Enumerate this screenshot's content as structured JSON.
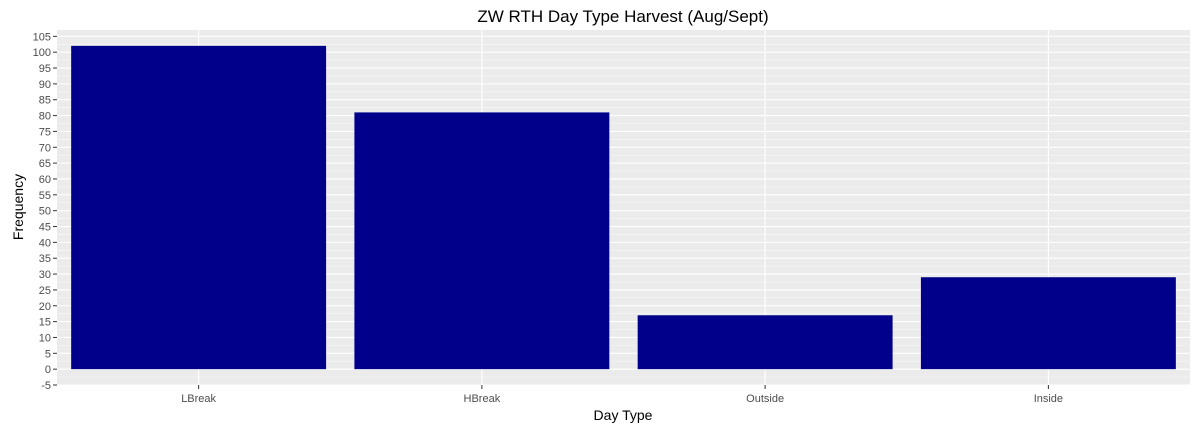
{
  "chart_data": {
    "type": "bar",
    "title": "ZW RTH Day Type Harvest (Aug/Sept)",
    "xlabel": "Day Type",
    "ylabel": "Frequency",
    "categories": [
      "LBreak",
      "HBreak",
      "Outside",
      "Inside"
    ],
    "values": [
      102,
      81,
      17,
      29
    ],
    "ylim": [
      -5,
      107
    ],
    "yticks": [
      -5,
      0,
      5,
      10,
      15,
      20,
      25,
      30,
      35,
      40,
      45,
      50,
      55,
      60,
      65,
      70,
      75,
      80,
      85,
      90,
      95,
      100,
      105
    ],
    "grid": true,
    "legend": "none",
    "colors": {
      "bar": "#00008B",
      "panel": "#EBEBEB",
      "gridline": "#FFFFFF"
    }
  }
}
